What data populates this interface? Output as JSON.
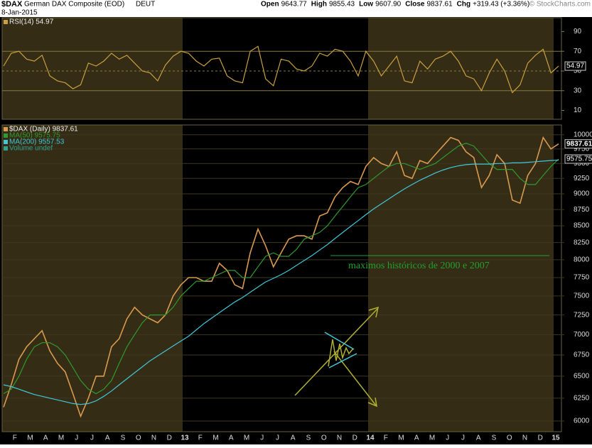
{
  "header": {
    "symbol": "$DAX",
    "name": "German DAX Composite (EOD)",
    "exchange": "DEUT",
    "date": "8-Jan-2015",
    "quote": [
      {
        "label": "Open",
        "value": "9643.77"
      },
      {
        "label": "High",
        "value": "9855.43"
      },
      {
        "label": "Low",
        "value": "9607.90"
      },
      {
        "label": "Close",
        "value": "9837.61"
      },
      {
        "label": "Chg",
        "value": "+319.43 (+3.36%)"
      }
    ],
    "credit": "© StockCharts.com"
  },
  "chart_data": [
    {
      "type": "line",
      "ylim": [
        1,
        104
      ],
      "yticks": [
        10,
        30,
        50,
        70,
        90
      ],
      "bands": [
        30,
        70
      ],
      "midline": 50,
      "series": [
        {
          "name": "RSI(14) 54.97",
          "color": "#c8a040",
          "values": [
            55,
            68,
            70,
            62,
            60,
            66,
            45,
            40,
            38,
            32,
            36,
            58,
            55,
            60,
            68,
            62,
            66,
            58,
            50,
            48,
            40,
            56,
            65,
            70,
            68,
            60,
            55,
            62,
            63,
            45,
            40,
            38,
            70,
            75,
            42,
            35,
            62,
            60,
            52,
            50,
            55,
            68,
            65,
            72,
            70,
            60,
            45,
            70,
            60,
            45,
            55,
            65,
            40,
            38,
            60,
            52,
            62,
            65,
            70,
            60,
            45,
            42,
            30,
            48,
            62,
            50,
            28,
            36,
            58,
            66,
            72,
            48,
            54.97
          ]
        }
      ]
    },
    {
      "type": "line",
      "log_scale": true,
      "grid": true,
      "ylim": [
        5887,
        10176
      ],
      "yticks": [
        6000,
        6250,
        6500,
        6750,
        7000,
        7250,
        7500,
        7750,
        8000,
        8250,
        8500,
        8750,
        9000,
        9250,
        9500,
        9750,
        10000
      ],
      "x_tick_labels": [
        "F",
        "M",
        "A",
        "M",
        "J",
        "J",
        "A",
        "S",
        "O",
        "N",
        "D",
        "13",
        "F",
        "M",
        "A",
        "M",
        "J",
        "J",
        "A",
        "S",
        "O",
        "N",
        "D",
        "14",
        "F",
        "M",
        "A",
        "M",
        "J",
        "J",
        "A",
        "S",
        "O",
        "N",
        "D",
        "15"
      ],
      "series": [
        {
          "name": "$DAX (Daily) 9837.61",
          "color": "#d89a50",
          "values": [
            6150,
            6400,
            6700,
            6850,
            6950,
            7050,
            6800,
            6650,
            6550,
            6300,
            6050,
            6250,
            6500,
            6500,
            6850,
            6950,
            7200,
            7350,
            7250,
            7200,
            7150,
            7250,
            7500,
            7650,
            7750,
            7750,
            7700,
            7700,
            7950,
            7850,
            7650,
            7600,
            8100,
            8450,
            8200,
            7900,
            8100,
            8300,
            8350,
            8350,
            8300,
            8650,
            8700,
            8950,
            9100,
            9200,
            9150,
            9450,
            9600,
            9500,
            9450,
            9700,
            9300,
            9250,
            9550,
            9500,
            9650,
            9800,
            9950,
            9900,
            9700,
            9600,
            9100,
            9300,
            9650,
            9500,
            8900,
            8850,
            9300,
            9500,
            9950,
            9750,
            9837.61
          ]
        },
        {
          "name": "MA(50) 9575.75",
          "color": "#2f9a2f",
          "values": [
            6300,
            6350,
            6500,
            6700,
            6850,
            6900,
            6900,
            6850,
            6750,
            6600,
            6450,
            6350,
            6300,
            6350,
            6450,
            6650,
            6850,
            7000,
            7150,
            7250,
            7250,
            7250,
            7350,
            7500,
            7600,
            7700,
            7700,
            7750,
            7800,
            7850,
            7850,
            7750,
            7750,
            7900,
            8050,
            8100,
            8050,
            8050,
            8150,
            8300,
            8350,
            8400,
            8500,
            8650,
            8800,
            8950,
            9100,
            9150,
            9250,
            9350,
            9450,
            9500,
            9500,
            9450,
            9400,
            9450,
            9500,
            9600,
            9700,
            9800,
            9850,
            9800,
            9650,
            9500,
            9400,
            9400,
            9400,
            9250,
            9150,
            9150,
            9300,
            9450,
            9575.75
          ]
        },
        {
          "name": "MA(200) 9557.53",
          "color": "#40c8d8",
          "values": [
            6400,
            6380,
            6350,
            6320,
            6290,
            6270,
            6250,
            6230,
            6210,
            6190,
            6180,
            6190,
            6220,
            6270,
            6330,
            6400,
            6470,
            6540,
            6610,
            6680,
            6740,
            6800,
            6860,
            6920,
            6980,
            7060,
            7140,
            7210,
            7280,
            7350,
            7420,
            7480,
            7550,
            7620,
            7690,
            7740,
            7790,
            7850,
            7920,
            7990,
            8060,
            8140,
            8220,
            8310,
            8400,
            8490,
            8580,
            8670,
            8760,
            8840,
            8920,
            9000,
            9080,
            9150,
            9220,
            9280,
            9340,
            9390,
            9430,
            9460,
            9480,
            9490,
            9490,
            9490,
            9500,
            9500,
            9510,
            9510,
            9520,
            9530,
            9540,
            9550,
            9557.53
          ]
        }
      ],
      "legend_extra": {
        "name": "Volume undef",
        "color": "#30a090"
      },
      "annotation": {
        "text": "maximos históricos de 2000 e 2007",
        "value": 8060,
        "color": "#22a030"
      }
    }
  ]
}
